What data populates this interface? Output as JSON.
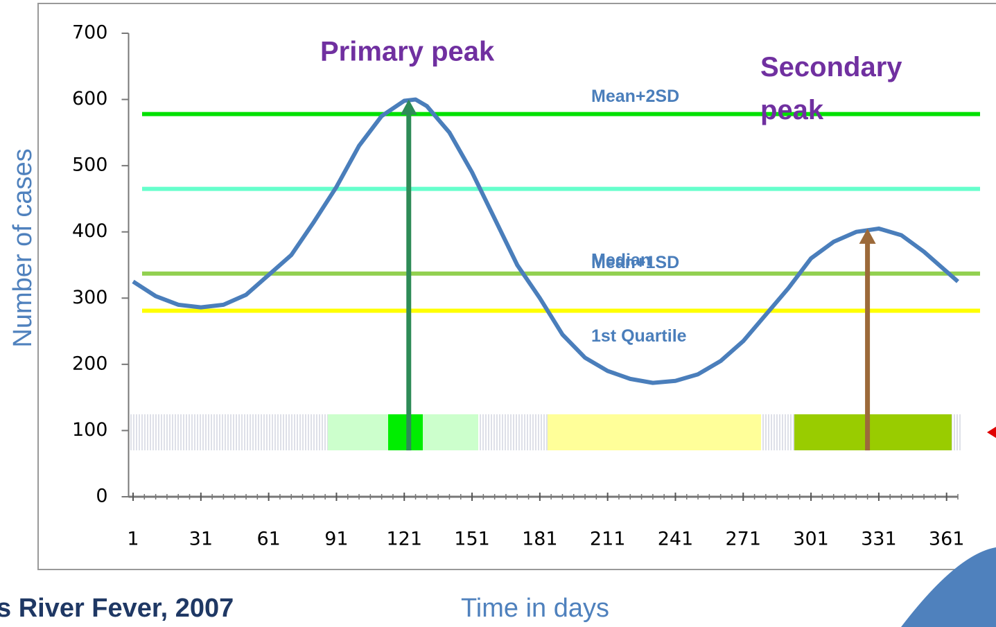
{
  "chart_data": {
    "type": "line",
    "title": "s River Fever, 2007",
    "x_label": "Time in days",
    "y_label": "Number of cases",
    "xlim": [
      -1,
      366
    ],
    "ylim": [
      0,
      700
    ],
    "xticks": [
      1,
      31,
      61,
      91,
      121,
      151,
      181,
      211,
      241,
      271,
      301,
      331,
      361
    ],
    "yticks": [
      0,
      100,
      200,
      300,
      400,
      500,
      600,
      700
    ],
    "series": [
      {
        "name": "Cases",
        "color": "#4a7ebb",
        "x": [
          1,
          11,
          21,
          31,
          41,
          51,
          61,
          71,
          81,
          91,
          101,
          111,
          121,
          126,
          131,
          141,
          151,
          161,
          171,
          181,
          191,
          201,
          211,
          221,
          231,
          241,
          251,
          261,
          271,
          281,
          291,
          301,
          311,
          321,
          331,
          341,
          351,
          361,
          366
        ],
        "values": [
          325,
          303,
          290,
          286,
          290,
          305,
          335,
          365,
          415,
          468,
          530,
          575,
          598,
          600,
          590,
          550,
          490,
          420,
          350,
          300,
          245,
          210,
          190,
          178,
          172,
          175,
          185,
          205,
          235,
          275,
          315,
          360,
          385,
          400,
          405,
          395,
          370,
          340,
          325
        ]
      }
    ],
    "reference_lines": [
      {
        "name": "Mean+2SD",
        "value": 578,
        "color": "#00e000"
      },
      {
        "name": "Mean+1SD",
        "value": 465,
        "color": "#66ffcc"
      },
      {
        "name": "Median",
        "value": 337,
        "color": "#92d050"
      },
      {
        "name": "1st Quartile",
        "value": 281,
        "color": "#ffff00"
      }
    ],
    "annotations": [
      {
        "text": "Primary peak",
        "x": 123,
        "from": 70,
        "to": 600,
        "color": "#2e8b57"
      },
      {
        "text": "Secondary peak",
        "x": 326,
        "from": 70,
        "to": 405,
        "color": "#9c6a3a"
      }
    ]
  }
}
